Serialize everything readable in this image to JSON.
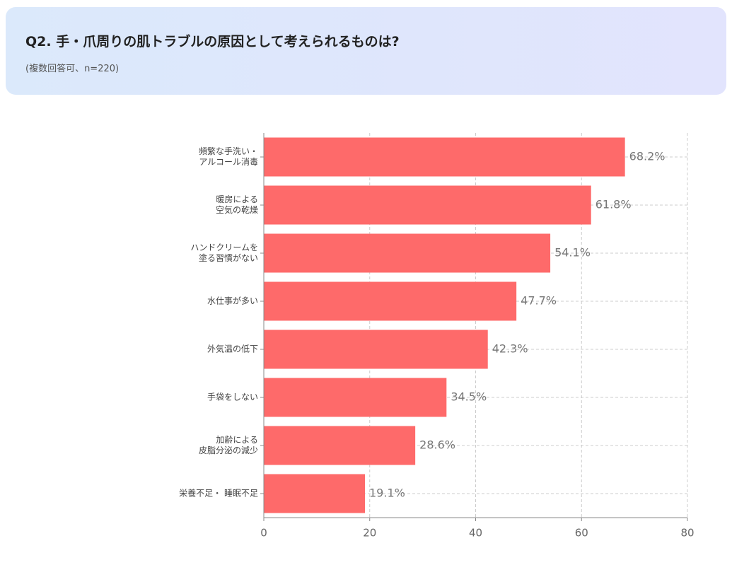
{
  "chart_data": {
    "type": "barh",
    "title": "Q2. 手・爪周りの肌トラブルの原因として考えられるものは?",
    "subtitle": "(複数回答可、n=220)",
    "categories": [
      "頻繁な手洗い・\nアルコール消毒",
      "暖房による\n空気の乾燥",
      "ハンドクリームを\n塗る習慣がない",
      "水仕事が多い",
      "外気温の低下",
      "手袋をしない",
      "加齢による\n皮脂分泌の減少",
      "栄養不足・ 睡眠不足"
    ],
    "values": [
      68.2,
      61.8,
      54.1,
      47.7,
      42.3,
      34.5,
      28.6,
      19.1
    ],
    "value_labels": [
      "68.2%",
      "61.8%",
      "54.1%",
      "47.7%",
      "42.3%",
      "34.5%",
      "28.6%",
      "19.1%"
    ],
    "color": "#fe6a6a",
    "xlim": [
      0,
      80
    ],
    "xticks": [
      0,
      20,
      40,
      60,
      80
    ],
    "grid": true
  }
}
